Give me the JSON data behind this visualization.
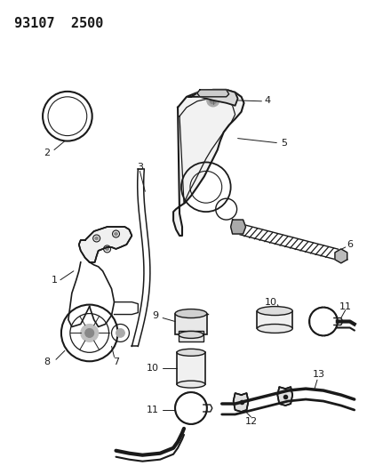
{
  "title": "93107  2500",
  "background_color": "#ffffff",
  "line_color": "#1a1a1a",
  "title_fontsize": 11,
  "title_fontweight": "bold",
  "fig_width": 4.14,
  "fig_height": 5.33,
  "dpi": 100
}
